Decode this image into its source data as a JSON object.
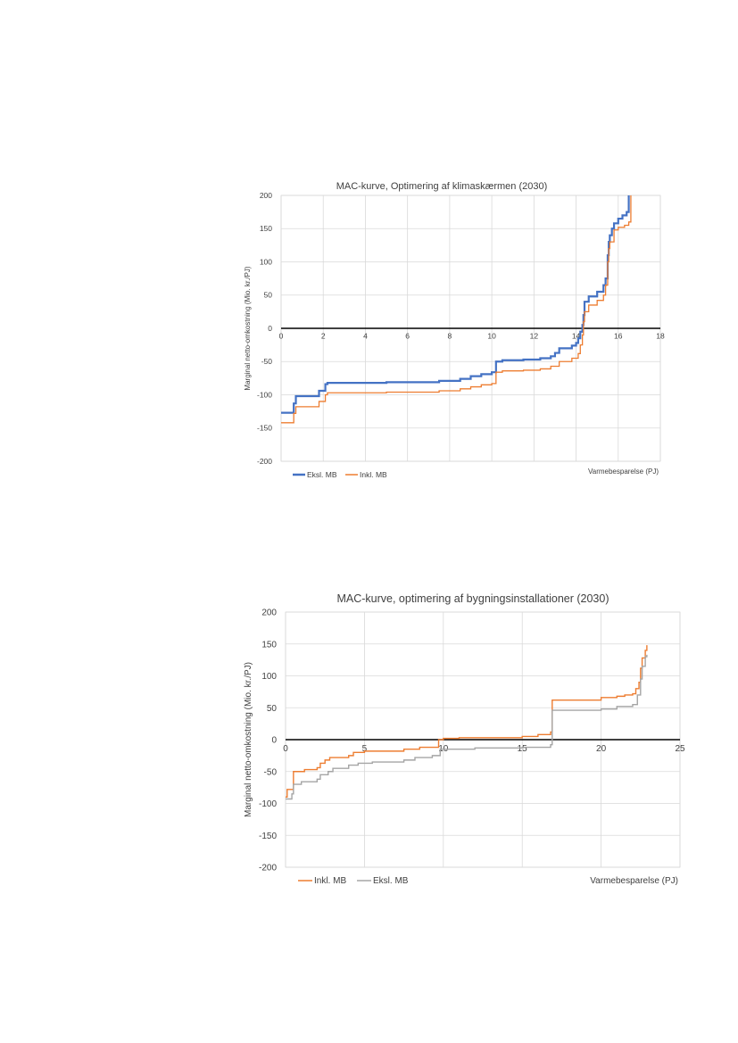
{
  "chart_data": [
    {
      "type": "line",
      "title": "MAC-kurve, Optimering af klimaskærmen (2030)",
      "xlabel": "Varmebesparelse (PJ)",
      "ylabel": "Marginal netto-omkostning (Mio. kr./PJ)",
      "xlim": [
        0,
        18
      ],
      "ylim": [
        -200,
        200
      ],
      "xticks": [
        "0",
        "2",
        "4",
        "6",
        "8",
        "10",
        "12",
        "14",
        "16",
        "18"
      ],
      "yticks": [
        "200",
        "150",
        "100",
        "50",
        "0",
        "-50",
        "-100",
        "-150",
        "-200"
      ],
      "grid": true,
      "legend": "bottom-left",
      "series": [
        {
          "name": "Eksl. MB",
          "color": "#4472c4",
          "points": [
            [
              0,
              -127
            ],
            [
              0.6,
              -127
            ],
            [
              0.6,
              -113
            ],
            [
              0.7,
              -113
            ],
            [
              0.7,
              -102
            ],
            [
              1.8,
              -102
            ],
            [
              1.8,
              -94
            ],
            [
              2.1,
              -94
            ],
            [
              2.1,
              -84
            ],
            [
              2.2,
              -84
            ],
            [
              2.2,
              -82
            ],
            [
              5.0,
              -82
            ],
            [
              5.0,
              -81
            ],
            [
              7.5,
              -81
            ],
            [
              7.5,
              -79
            ],
            [
              8.5,
              -79
            ],
            [
              8.5,
              -76
            ],
            [
              9.0,
              -76
            ],
            [
              9.0,
              -72
            ],
            [
              9.5,
              -72
            ],
            [
              9.5,
              -69
            ],
            [
              10.0,
              -69
            ],
            [
              10.0,
              -66
            ],
            [
              10.2,
              -66
            ],
            [
              10.2,
              -50
            ],
            [
              10.5,
              -50
            ],
            [
              10.5,
              -48
            ],
            [
              11.5,
              -48
            ],
            [
              11.5,
              -47
            ],
            [
              12.3,
              -47
            ],
            [
              12.3,
              -45
            ],
            [
              12.8,
              -45
            ],
            [
              12.8,
              -42
            ],
            [
              13.0,
              -42
            ],
            [
              13.0,
              -37
            ],
            [
              13.2,
              -37
            ],
            [
              13.2,
              -30
            ],
            [
              13.8,
              -30
            ],
            [
              13.8,
              -26
            ],
            [
              14.0,
              -26
            ],
            [
              14.0,
              -22
            ],
            [
              14.1,
              -22
            ],
            [
              14.1,
              -15
            ],
            [
              14.2,
              -15
            ],
            [
              14.2,
              -5
            ],
            [
              14.3,
              -5
            ],
            [
              14.3,
              5
            ],
            [
              14.35,
              5
            ],
            [
              14.35,
              20
            ],
            [
              14.4,
              20
            ],
            [
              14.4,
              40
            ],
            [
              14.6,
              40
            ],
            [
              14.6,
              48
            ],
            [
              15.0,
              48
            ],
            [
              15.0,
              55
            ],
            [
              15.3,
              55
            ],
            [
              15.3,
              65
            ],
            [
              15.4,
              65
            ],
            [
              15.4,
              75
            ],
            [
              15.5,
              75
            ],
            [
              15.5,
              110
            ],
            [
              15.55,
              110
            ],
            [
              15.55,
              130
            ],
            [
              15.6,
              130
            ],
            [
              15.6,
              140
            ],
            [
              15.7,
              140
            ],
            [
              15.7,
              150
            ],
            [
              15.8,
              150
            ],
            [
              15.8,
              158
            ],
            [
              16.0,
              158
            ],
            [
              16.0,
              165
            ],
            [
              16.2,
              165
            ],
            [
              16.2,
              170
            ],
            [
              16.4,
              170
            ],
            [
              16.4,
              175
            ],
            [
              16.5,
              175
            ],
            [
              16.5,
              200
            ]
          ]
        },
        {
          "name": "Inkl. MB",
          "color": "#ed7d31",
          "points": [
            [
              0,
              -142
            ],
            [
              0.6,
              -142
            ],
            [
              0.6,
              -128
            ],
            [
              0.7,
              -128
            ],
            [
              0.7,
              -118
            ],
            [
              1.8,
              -118
            ],
            [
              1.8,
              -110
            ],
            [
              2.1,
              -110
            ],
            [
              2.1,
              -100
            ],
            [
              2.2,
              -100
            ],
            [
              2.2,
              -97
            ],
            [
              5.0,
              -97
            ],
            [
              5.0,
              -96
            ],
            [
              7.5,
              -96
            ],
            [
              7.5,
              -94
            ],
            [
              8.5,
              -94
            ],
            [
              8.5,
              -91
            ],
            [
              9.0,
              -91
            ],
            [
              9.0,
              -88
            ],
            [
              9.5,
              -88
            ],
            [
              9.5,
              -85
            ],
            [
              10.0,
              -85
            ],
            [
              10.0,
              -83
            ],
            [
              10.2,
              -83
            ],
            [
              10.2,
              -66
            ],
            [
              10.5,
              -66
            ],
            [
              10.5,
              -64
            ],
            [
              11.5,
              -64
            ],
            [
              11.5,
              -63
            ],
            [
              12.3,
              -63
            ],
            [
              12.3,
              -61
            ],
            [
              12.8,
              -61
            ],
            [
              12.8,
              -57
            ],
            [
              13.2,
              -57
            ],
            [
              13.2,
              -50
            ],
            [
              13.8,
              -50
            ],
            [
              13.8,
              -45
            ],
            [
              14.1,
              -45
            ],
            [
              14.1,
              -38
            ],
            [
              14.2,
              -38
            ],
            [
              14.2,
              -25
            ],
            [
              14.3,
              -25
            ],
            [
              14.3,
              -10
            ],
            [
              14.35,
              -10
            ],
            [
              14.35,
              10
            ],
            [
              14.4,
              10
            ],
            [
              14.4,
              25
            ],
            [
              14.6,
              25
            ],
            [
              14.6,
              35
            ],
            [
              15.0,
              35
            ],
            [
              15.0,
              42
            ],
            [
              15.3,
              42
            ],
            [
              15.3,
              50
            ],
            [
              15.4,
              50
            ],
            [
              15.4,
              65
            ],
            [
              15.5,
              65
            ],
            [
              15.5,
              100
            ],
            [
              15.55,
              100
            ],
            [
              15.55,
              120
            ],
            [
              15.6,
              120
            ],
            [
              15.6,
              130
            ],
            [
              15.8,
              130
            ],
            [
              15.8,
              148
            ],
            [
              16.0,
              148
            ],
            [
              16.0,
              152
            ],
            [
              16.3,
              152
            ],
            [
              16.3,
              155
            ],
            [
              16.5,
              155
            ],
            [
              16.5,
              160
            ],
            [
              16.6,
              160
            ],
            [
              16.6,
              200
            ]
          ]
        }
      ]
    },
    {
      "type": "line",
      "title": "MAC-kurve, optimering af bygningsinstallationer (2030)",
      "xlabel": "Varmebesparelse (PJ)",
      "ylabel": "Marginal netto-omkostning (Mio. kr./PJ)",
      "xlim": [
        0,
        25
      ],
      "ylim": [
        -200,
        200
      ],
      "xticks": [
        "0",
        "5",
        "10",
        "15",
        "20",
        "25"
      ],
      "yticks": [
        "200",
        "150",
        "100",
        "50",
        "0",
        "-50",
        "-100",
        "-150",
        "-200"
      ],
      "grid": true,
      "legend": "bottom-left",
      "series": [
        {
          "name": "Inkl. MB",
          "color": "#ed7d31",
          "points": [
            [
              0,
              -90
            ],
            [
              0.1,
              -90
            ],
            [
              0.1,
              -78
            ],
            [
              0.5,
              -78
            ],
            [
              0.5,
              -50
            ],
            [
              1.2,
              -50
            ],
            [
              1.2,
              -47
            ],
            [
              2.0,
              -47
            ],
            [
              2.0,
              -44
            ],
            [
              2.2,
              -44
            ],
            [
              2.2,
              -37
            ],
            [
              2.5,
              -37
            ],
            [
              2.5,
              -32
            ],
            [
              2.8,
              -32
            ],
            [
              2.8,
              -28
            ],
            [
              4.0,
              -28
            ],
            [
              4.0,
              -25
            ],
            [
              4.3,
              -25
            ],
            [
              4.3,
              -20
            ],
            [
              5.0,
              -20
            ],
            [
              5.0,
              -18
            ],
            [
              7.5,
              -18
            ],
            [
              7.5,
              -15
            ],
            [
              8.5,
              -15
            ],
            [
              8.5,
              -12
            ],
            [
              9.7,
              -12
            ],
            [
              9.7,
              0
            ],
            [
              10.0,
              0
            ],
            [
              10.0,
              2
            ],
            [
              11.0,
              2
            ],
            [
              11.0,
              3
            ],
            [
              15.0,
              3
            ],
            [
              15.0,
              5
            ],
            [
              16.0,
              5
            ],
            [
              16.0,
              8
            ],
            [
              16.8,
              8
            ],
            [
              16.8,
              12
            ],
            [
              16.9,
              12
            ],
            [
              16.9,
              62
            ],
            [
              20.0,
              62
            ],
            [
              20.0,
              66
            ],
            [
              21.0,
              66
            ],
            [
              21.0,
              68
            ],
            [
              21.5,
              68
            ],
            [
              21.5,
              70
            ],
            [
              22.0,
              70
            ],
            [
              22.0,
              72
            ],
            [
              22.2,
              72
            ],
            [
              22.2,
              80
            ],
            [
              22.4,
              80
            ],
            [
              22.4,
              90
            ],
            [
              22.5,
              90
            ],
            [
              22.5,
              112
            ],
            [
              22.6,
              112
            ],
            [
              22.6,
              128
            ],
            [
              22.8,
              128
            ],
            [
              22.8,
              140
            ],
            [
              22.9,
              140
            ],
            [
              22.9,
              148
            ]
          ]
        },
        {
          "name": "Eksl. MB",
          "color": "#a5a5a5",
          "points": [
            [
              0,
              -93
            ],
            [
              0.4,
              -93
            ],
            [
              0.4,
              -85
            ],
            [
              0.5,
              -85
            ],
            [
              0.5,
              -70
            ],
            [
              1.0,
              -70
            ],
            [
              1.0,
              -66
            ],
            [
              2.0,
              -66
            ],
            [
              2.0,
              -62
            ],
            [
              2.2,
              -62
            ],
            [
              2.2,
              -55
            ],
            [
              2.7,
              -55
            ],
            [
              2.7,
              -50
            ],
            [
              3.0,
              -50
            ],
            [
              3.0,
              -45
            ],
            [
              4.0,
              -45
            ],
            [
              4.0,
              -40
            ],
            [
              4.6,
              -40
            ],
            [
              4.6,
              -37
            ],
            [
              5.5,
              -37
            ],
            [
              5.5,
              -35
            ],
            [
              7.5,
              -35
            ],
            [
              7.5,
              -32
            ],
            [
              8.2,
              -32
            ],
            [
              8.2,
              -28
            ],
            [
              9.3,
              -28
            ],
            [
              9.3,
              -25
            ],
            [
              9.8,
              -25
            ],
            [
              9.8,
              -15
            ],
            [
              12.0,
              -15
            ],
            [
              12.0,
              -13
            ],
            [
              15.0,
              -13
            ],
            [
              15.0,
              -12
            ],
            [
              16.8,
              -12
            ],
            [
              16.8,
              -8
            ],
            [
              16.9,
              -8
            ],
            [
              16.9,
              46
            ],
            [
              20.0,
              46
            ],
            [
              20.0,
              48
            ],
            [
              21.0,
              48
            ],
            [
              21.0,
              52
            ],
            [
              22.0,
              52
            ],
            [
              22.0,
              55
            ],
            [
              22.3,
              55
            ],
            [
              22.3,
              70
            ],
            [
              22.5,
              70
            ],
            [
              22.5,
              95
            ],
            [
              22.6,
              95
            ],
            [
              22.6,
              115
            ],
            [
              22.8,
              115
            ],
            [
              22.8,
              130
            ],
            [
              22.9,
              130
            ],
            [
              22.9,
              133
            ]
          ]
        }
      ]
    }
  ]
}
